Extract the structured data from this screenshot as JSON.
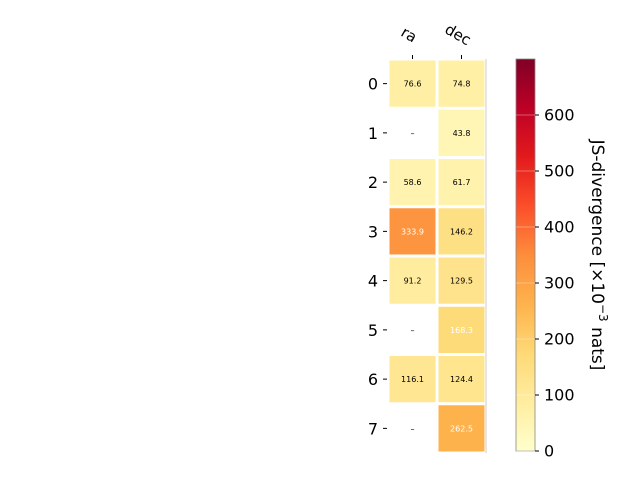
{
  "chart_data": {
    "type": "heatmap",
    "rows": [
      "0",
      "1",
      "2",
      "3",
      "4",
      "5",
      "6",
      "7"
    ],
    "columns": [
      "ra",
      "dec"
    ],
    "values": [
      [
        76.6,
        74.8
      ],
      [
        null,
        43.8
      ],
      [
        58.6,
        61.7
      ],
      [
        333.9,
        146.2
      ],
      [
        91.2,
        129.5
      ],
      [
        null,
        168.3
      ],
      [
        116.1,
        124.4
      ],
      [
        null,
        262.5
      ]
    ],
    "missing_label": "–",
    "colorbar": {
      "label_prefix": "JS-divergence [×10",
      "label_exponent": "−3",
      "label_suffix": " nats]",
      "range": [
        0,
        700
      ],
      "ticks": [
        0,
        100,
        200,
        300,
        400,
        500,
        600
      ],
      "tick_labels": [
        "0",
        "100",
        "200",
        "300",
        "400",
        "500",
        "600"
      ],
      "colormap": "YlOrRd"
    },
    "value_label_light_threshold": 150
  }
}
